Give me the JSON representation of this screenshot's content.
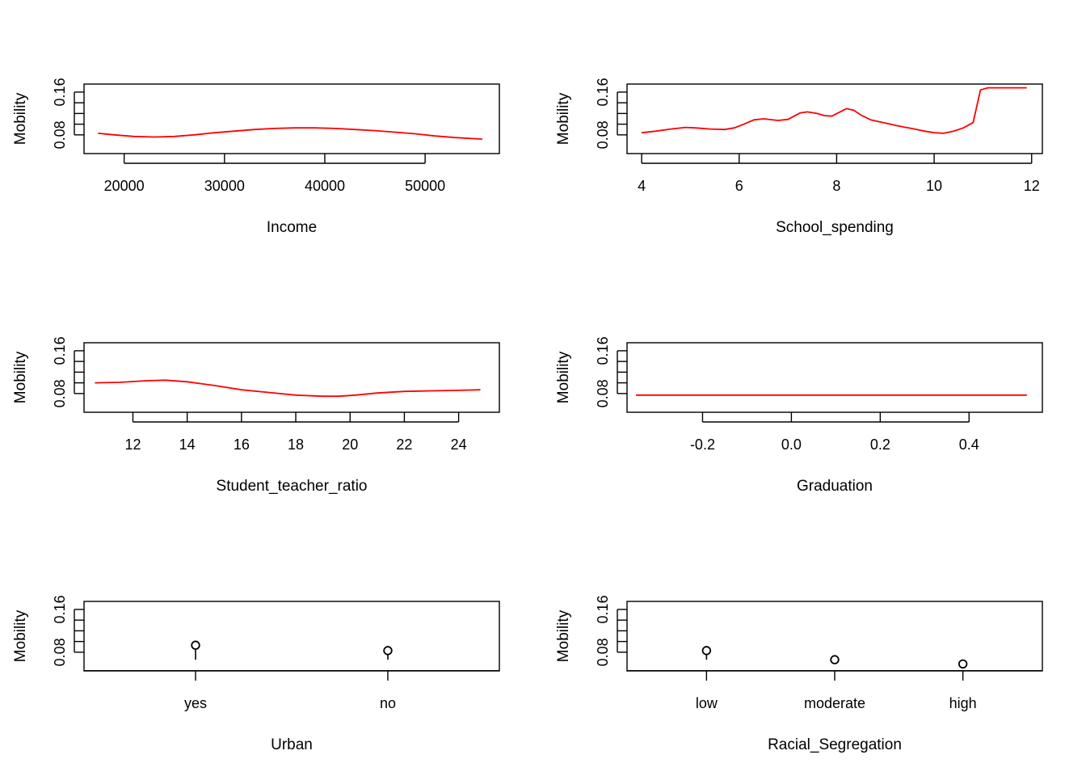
{
  "chart_data": [
    {
      "type": "line",
      "panel": "Income",
      "xlabel": "Income",
      "ylabel": "Mobility",
      "xlim": [
        16000,
        57400
      ],
      "ylim": [
        0.045,
        0.175
      ],
      "x_ticks": [
        20000,
        30000,
        40000,
        50000
      ],
      "y_ticks": [
        0.08,
        0.16
      ],
      "color": "#ff0000",
      "series": [
        {
          "x": [
            17400,
            19000,
            21000,
            23000,
            25000,
            27000,
            29000,
            31000,
            33000,
            35000,
            37000,
            39000,
            41000,
            43000,
            45000,
            47000,
            49000,
            51000,
            53000,
            55700
          ],
          "y": [
            0.083,
            0.08,
            0.077,
            0.076,
            0.077,
            0.08,
            0.084,
            0.087,
            0.09,
            0.092,
            0.093,
            0.093,
            0.092,
            0.09,
            0.088,
            0.085,
            0.082,
            0.078,
            0.075,
            0.072
          ]
        }
      ]
    },
    {
      "type": "line",
      "panel": "School_spending",
      "xlabel": "School_spending",
      "ylabel": "Mobility",
      "xlim": [
        3.7,
        12.22
      ],
      "ylim": [
        0.045,
        0.175
      ],
      "x_ticks": [
        4,
        6,
        8,
        10,
        12
      ],
      "x_tick_labels": [
        "4",
        "6",
        "8",
        "10",
        "12"
      ],
      "y_ticks": [
        0.08,
        0.16
      ],
      "color": "#ff0000",
      "series": [
        {
          "x": [
            4.0,
            4.3,
            4.6,
            4.9,
            5.1,
            5.4,
            5.7,
            5.9,
            6.1,
            6.3,
            6.5,
            6.8,
            7.0,
            7.25,
            7.4,
            7.6,
            7.75,
            7.9,
            8.05,
            8.2,
            8.35,
            8.5,
            8.7,
            9.0,
            9.3,
            9.6,
            9.8,
            10.0,
            10.2,
            10.4,
            10.6,
            10.8,
            10.95,
            11.1,
            11.3,
            11.6,
            11.9
          ],
          "y": [
            0.084,
            0.087,
            0.091,
            0.094,
            0.093,
            0.091,
            0.09,
            0.093,
            0.1,
            0.108,
            0.11,
            0.107,
            0.109,
            0.121,
            0.123,
            0.12,
            0.116,
            0.115,
            0.122,
            0.129,
            0.126,
            0.117,
            0.108,
            0.102,
            0.096,
            0.091,
            0.087,
            0.084,
            0.083,
            0.087,
            0.093,
            0.103,
            0.164,
            0.168,
            0.168,
            0.168,
            0.168
          ]
        }
      ]
    },
    {
      "type": "line",
      "panel": "Student_teacher_ratio",
      "xlabel": "Student_teacher_ratio",
      "ylabel": "Mobility",
      "xlim": [
        10.2,
        25.5
      ],
      "ylim": [
        0.045,
        0.175
      ],
      "x_ticks": [
        12,
        14,
        16,
        18,
        20,
        22,
        24
      ],
      "y_ticks": [
        0.08,
        0.16
      ],
      "color": "#ff0000",
      "series": [
        {
          "x": [
            10.6,
            11.5,
            12.5,
            13.2,
            14.0,
            15.0,
            16.0,
            17.0,
            18.0,
            19.0,
            19.6,
            20.2,
            21.0,
            22.0,
            23.0,
            24.0,
            24.8
          ],
          "y": [
            0.1,
            0.101,
            0.104,
            0.105,
            0.102,
            0.095,
            0.087,
            0.082,
            0.077,
            0.075,
            0.075,
            0.077,
            0.081,
            0.084,
            0.085,
            0.086,
            0.087
          ]
        }
      ]
    },
    {
      "type": "line",
      "panel": "Graduation",
      "xlabel": "Graduation",
      "ylabel": "Mobility",
      "xlim": [
        -0.37,
        0.565
      ],
      "ylim": [
        0.045,
        0.175
      ],
      "x_ticks": [
        -0.2,
        0.0,
        0.2,
        0.4
      ],
      "x_tick_labels": [
        "-0.2",
        "0.0",
        "0.2",
        "0.4"
      ],
      "y_ticks": [
        0.08,
        0.16
      ],
      "color": "#ff0000",
      "series": [
        {
          "x": [
            -0.35,
            0.53
          ],
          "y": [
            0.077,
            0.077
          ]
        }
      ]
    },
    {
      "type": "scatter",
      "panel": "Urban",
      "xlabel": "Urban",
      "ylabel": "Mobility",
      "categories": [
        "yes",
        "no"
      ],
      "xlim": [
        0.42,
        2.58
      ],
      "ylim": [
        0.045,
        0.175
      ],
      "y_ticks": [
        0.08,
        0.16
      ],
      "values": [
        0.093,
        0.083
      ],
      "base": 0.075
    },
    {
      "type": "scatter",
      "panel": "Racial_Segregation",
      "xlabel": "Racial_Segregation",
      "ylabel": "Mobility",
      "categories": [
        "low",
        "moderate",
        "high"
      ],
      "xlim": [
        0.38,
        3.62
      ],
      "ylim": [
        0.045,
        0.175
      ],
      "y_ticks": [
        0.08,
        0.16
      ],
      "values": [
        0.083,
        0.066,
        0.058
      ],
      "base": 0.075
    }
  ]
}
